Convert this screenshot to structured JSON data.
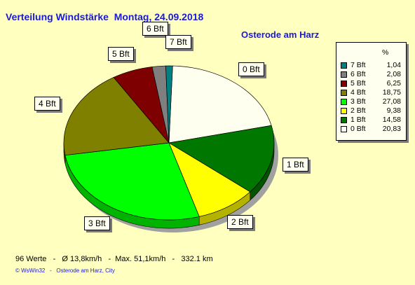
{
  "header": {
    "title": "Verteilung Windstärke  Montag, 24.09.2018",
    "location": "Osterode am Harz"
  },
  "legend": {
    "percent_header": "%"
  },
  "footer": {
    "stats": "96 Werte   -   Ø 13,8km/h   -  Max. 51,1km/h   -   332.1 km",
    "credit": "© WsWin32   -   Osterode am Harz, City"
  },
  "chart_data": {
    "type": "pie",
    "title": "Verteilung Windstärke  Montag, 24.09.2018",
    "subtitle": "Osterode am Harz",
    "legend_position": "top-right",
    "slices": [
      {
        "label": "0 Bft",
        "value": 20.83,
        "value_label": "20,83",
        "color": "#fffff0"
      },
      {
        "label": "1 Bft",
        "value": 14.58,
        "value_label": "14,58",
        "color": "#007800"
      },
      {
        "label": "2 Bft",
        "value": 9.38,
        "value_label": "9,38",
        "color": "#ffff00"
      },
      {
        "label": "3 Bft",
        "value": 27.08,
        "value_label": "27,08",
        "color": "#00ff00"
      },
      {
        "label": "4 Bft",
        "value": 18.75,
        "value_label": "18,75",
        "color": "#7f7f00"
      },
      {
        "label": "5 Bft",
        "value": 6.25,
        "value_label": "6,25",
        "color": "#7f0000"
      },
      {
        "label": "6 Bft",
        "value": 2.08,
        "value_label": "2,08",
        "color": "#7f7f7f"
      },
      {
        "label": "7 Bft",
        "value": 1.04,
        "value_label": "1,04",
        "color": "#008080"
      }
    ]
  }
}
